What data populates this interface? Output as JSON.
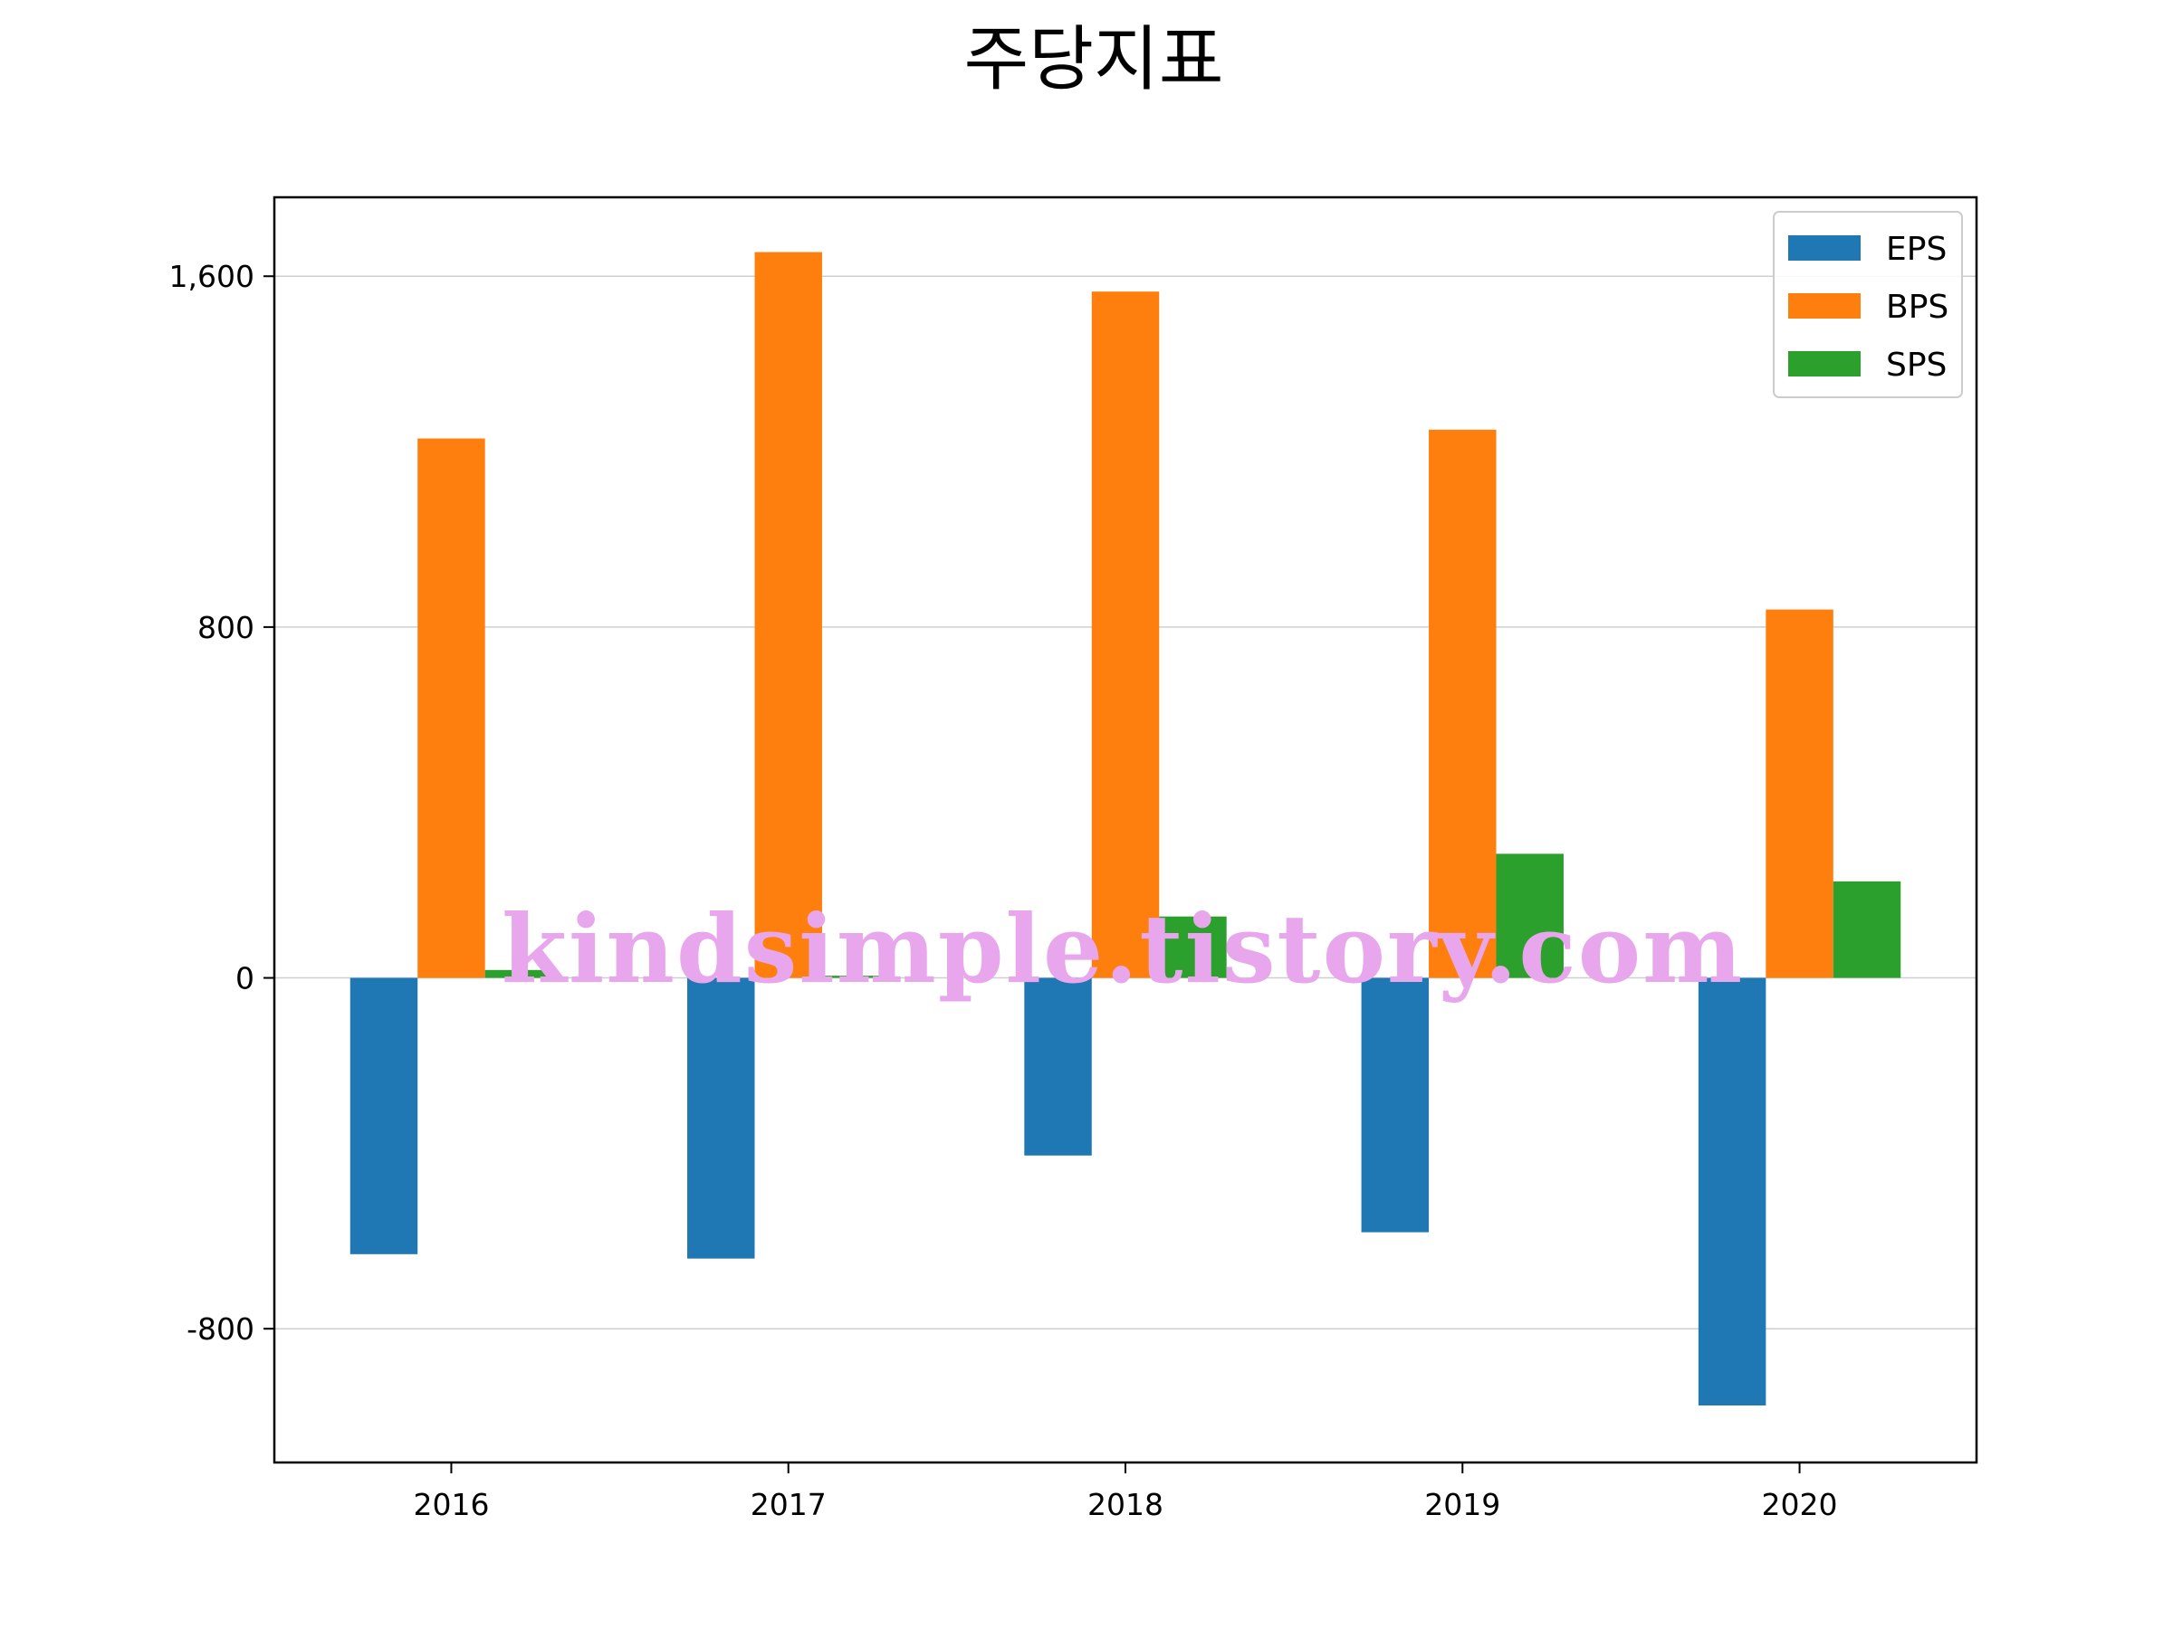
{
  "chart_data": {
    "type": "bar",
    "title": "주당지표",
    "xlabel": "",
    "ylabel": "",
    "categories": [
      "2016",
      "2017",
      "2018",
      "2019",
      "2020"
    ],
    "series": [
      {
        "name": "EPS",
        "color": "#1f77b4",
        "values": [
          -630,
          -640,
          -405,
          -580,
          -975
        ]
      },
      {
        "name": "BPS",
        "color": "#ff7f0e",
        "values": [
          1230,
          1655,
          1565,
          1250,
          840
        ]
      },
      {
        "name": "SPS",
        "color": "#2ca02c",
        "values": [
          18,
          5,
          140,
          283,
          220
        ]
      }
    ],
    "ylim": [
      -1105,
      1780
    ],
    "yticks": [
      -800,
      0,
      800,
      1600
    ],
    "ytick_labels": [
      "-800",
      "0",
      "800",
      "1,600"
    ],
    "grid": "horizontal",
    "legend_position": "top-right"
  },
  "watermark": "kindsimple.tistory.com"
}
